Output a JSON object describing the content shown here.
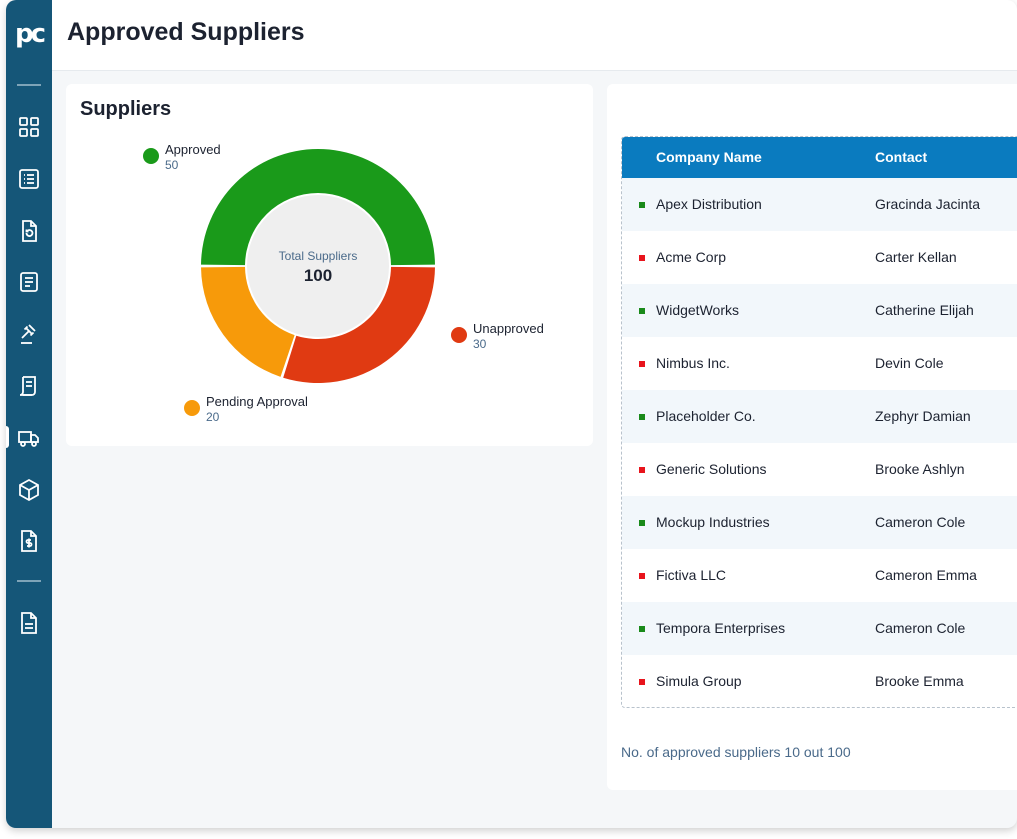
{
  "page": {
    "title": "Approved Suppliers"
  },
  "sidebar": {
    "logo_text": "pc",
    "items": [
      {
        "icon": "dashboard-grid-icon"
      },
      {
        "icon": "list-icon"
      },
      {
        "icon": "document-refresh-icon"
      },
      {
        "icon": "document-lines-icon"
      },
      {
        "icon": "gavel-icon"
      },
      {
        "icon": "receipt-icon"
      },
      {
        "icon": "truck-icon",
        "active": true
      },
      {
        "icon": "box-icon"
      },
      {
        "icon": "document-dollar-icon"
      },
      {
        "icon": "document-icon"
      }
    ]
  },
  "chart_card": {
    "title": "Suppliers",
    "center_label": "Total Suppliers",
    "center_value": "100"
  },
  "chart_data": {
    "type": "pie",
    "categories": [
      "Approved",
      "Unapproved",
      "Pending Approval"
    ],
    "values": [
      50,
      30,
      20
    ],
    "value_labels": [
      "50",
      "30",
      "20"
    ],
    "colors": [
      "#1a9a1a",
      "#e03a12",
      "#f79a0a"
    ],
    "total": 100
  },
  "table": {
    "headers": {
      "company": "Company Name",
      "contact": "Contact"
    },
    "rows": [
      {
        "company": "Apex Distribution",
        "contact": "Gracinda Jacinta",
        "status_color": "#1a8a1a"
      },
      {
        "company": "Acme Corp",
        "contact": "Carter Kellan",
        "status_color": "#e8141c"
      },
      {
        "company": "WidgetWorks",
        "contact": "Catherine Elijah",
        "status_color": "#1a8a1a"
      },
      {
        "company": "Nimbus Inc.",
        "contact": "Devin Cole",
        "status_color": "#e8141c"
      },
      {
        "company": "Placeholder Co.",
        "contact": "Zephyr Damian",
        "status_color": "#1a8a1a"
      },
      {
        "company": "Generic Solutions",
        "contact": "Brooke Ashlyn",
        "status_color": "#e8141c"
      },
      {
        "company": "Mockup Industries",
        "contact": "Cameron Cole",
        "status_color": "#1a8a1a"
      },
      {
        "company": "Fictiva LLC",
        "contact": "Cameron Emma",
        "status_color": "#e8141c"
      },
      {
        "company": "Tempora Enterprises",
        "contact": "Cameron Cole",
        "status_color": "#1a8a1a"
      },
      {
        "company": "Simula Group",
        "contact": "Brooke Emma",
        "status_color": "#e8141c"
      }
    ],
    "footnote": "No. of approved suppliers 10 out 100"
  }
}
